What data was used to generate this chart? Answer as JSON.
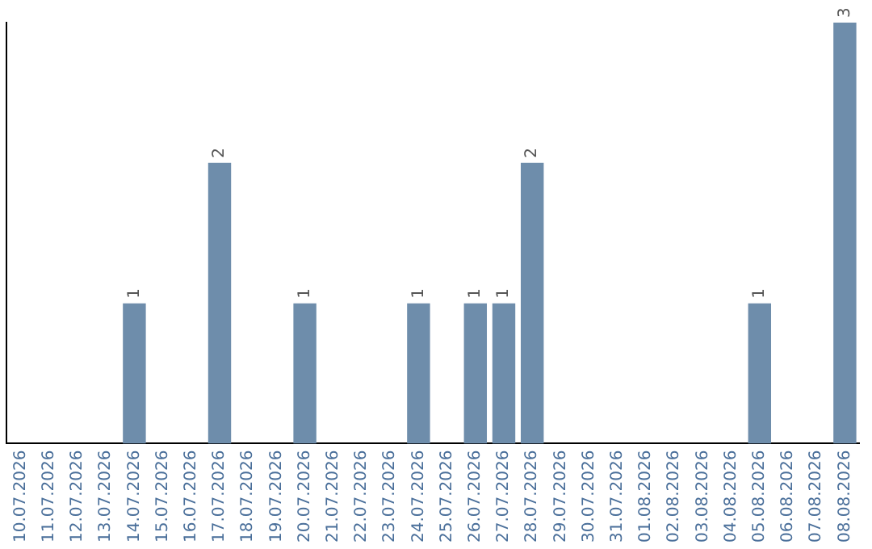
{
  "chart_data": {
    "type": "bar",
    "categories": [
      "10.07.2026",
      "11.07.2026",
      "12.07.2026",
      "13.07.2026",
      "14.07.2026",
      "15.07.2026",
      "16.07.2026",
      "17.07.2026",
      "18.07.2026",
      "19.07.2026",
      "20.07.2026",
      "21.07.2026",
      "22.07.2026",
      "23.07.2026",
      "24.07.2026",
      "25.07.2026",
      "26.07.2026",
      "27.07.2026",
      "28.07.2026",
      "29.07.2026",
      "30.07.2026",
      "31.07.2026",
      "01.08.2026",
      "02.08.2026",
      "03.08.2026",
      "04.08.2026",
      "05.08.2026",
      "06.08.2026",
      "07.08.2026",
      "08.08.2026"
    ],
    "values": [
      0,
      0,
      0,
      0,
      1,
      0,
      0,
      2,
      0,
      0,
      1,
      0,
      0,
      0,
      1,
      0,
      1,
      1,
      2,
      0,
      0,
      0,
      0,
      0,
      0,
      0,
      1,
      0,
      0,
      3
    ],
    "value_labels": [
      null,
      null,
      null,
      null,
      "1",
      null,
      null,
      "2",
      null,
      null,
      "1",
      null,
      null,
      null,
      "1",
      null,
      "1",
      "1",
      "2",
      null,
      null,
      null,
      null,
      null,
      null,
      null,
      "1",
      null,
      null,
      "3"
    ],
    "color": "#6e8dab",
    "grid": false,
    "legend": false
  }
}
